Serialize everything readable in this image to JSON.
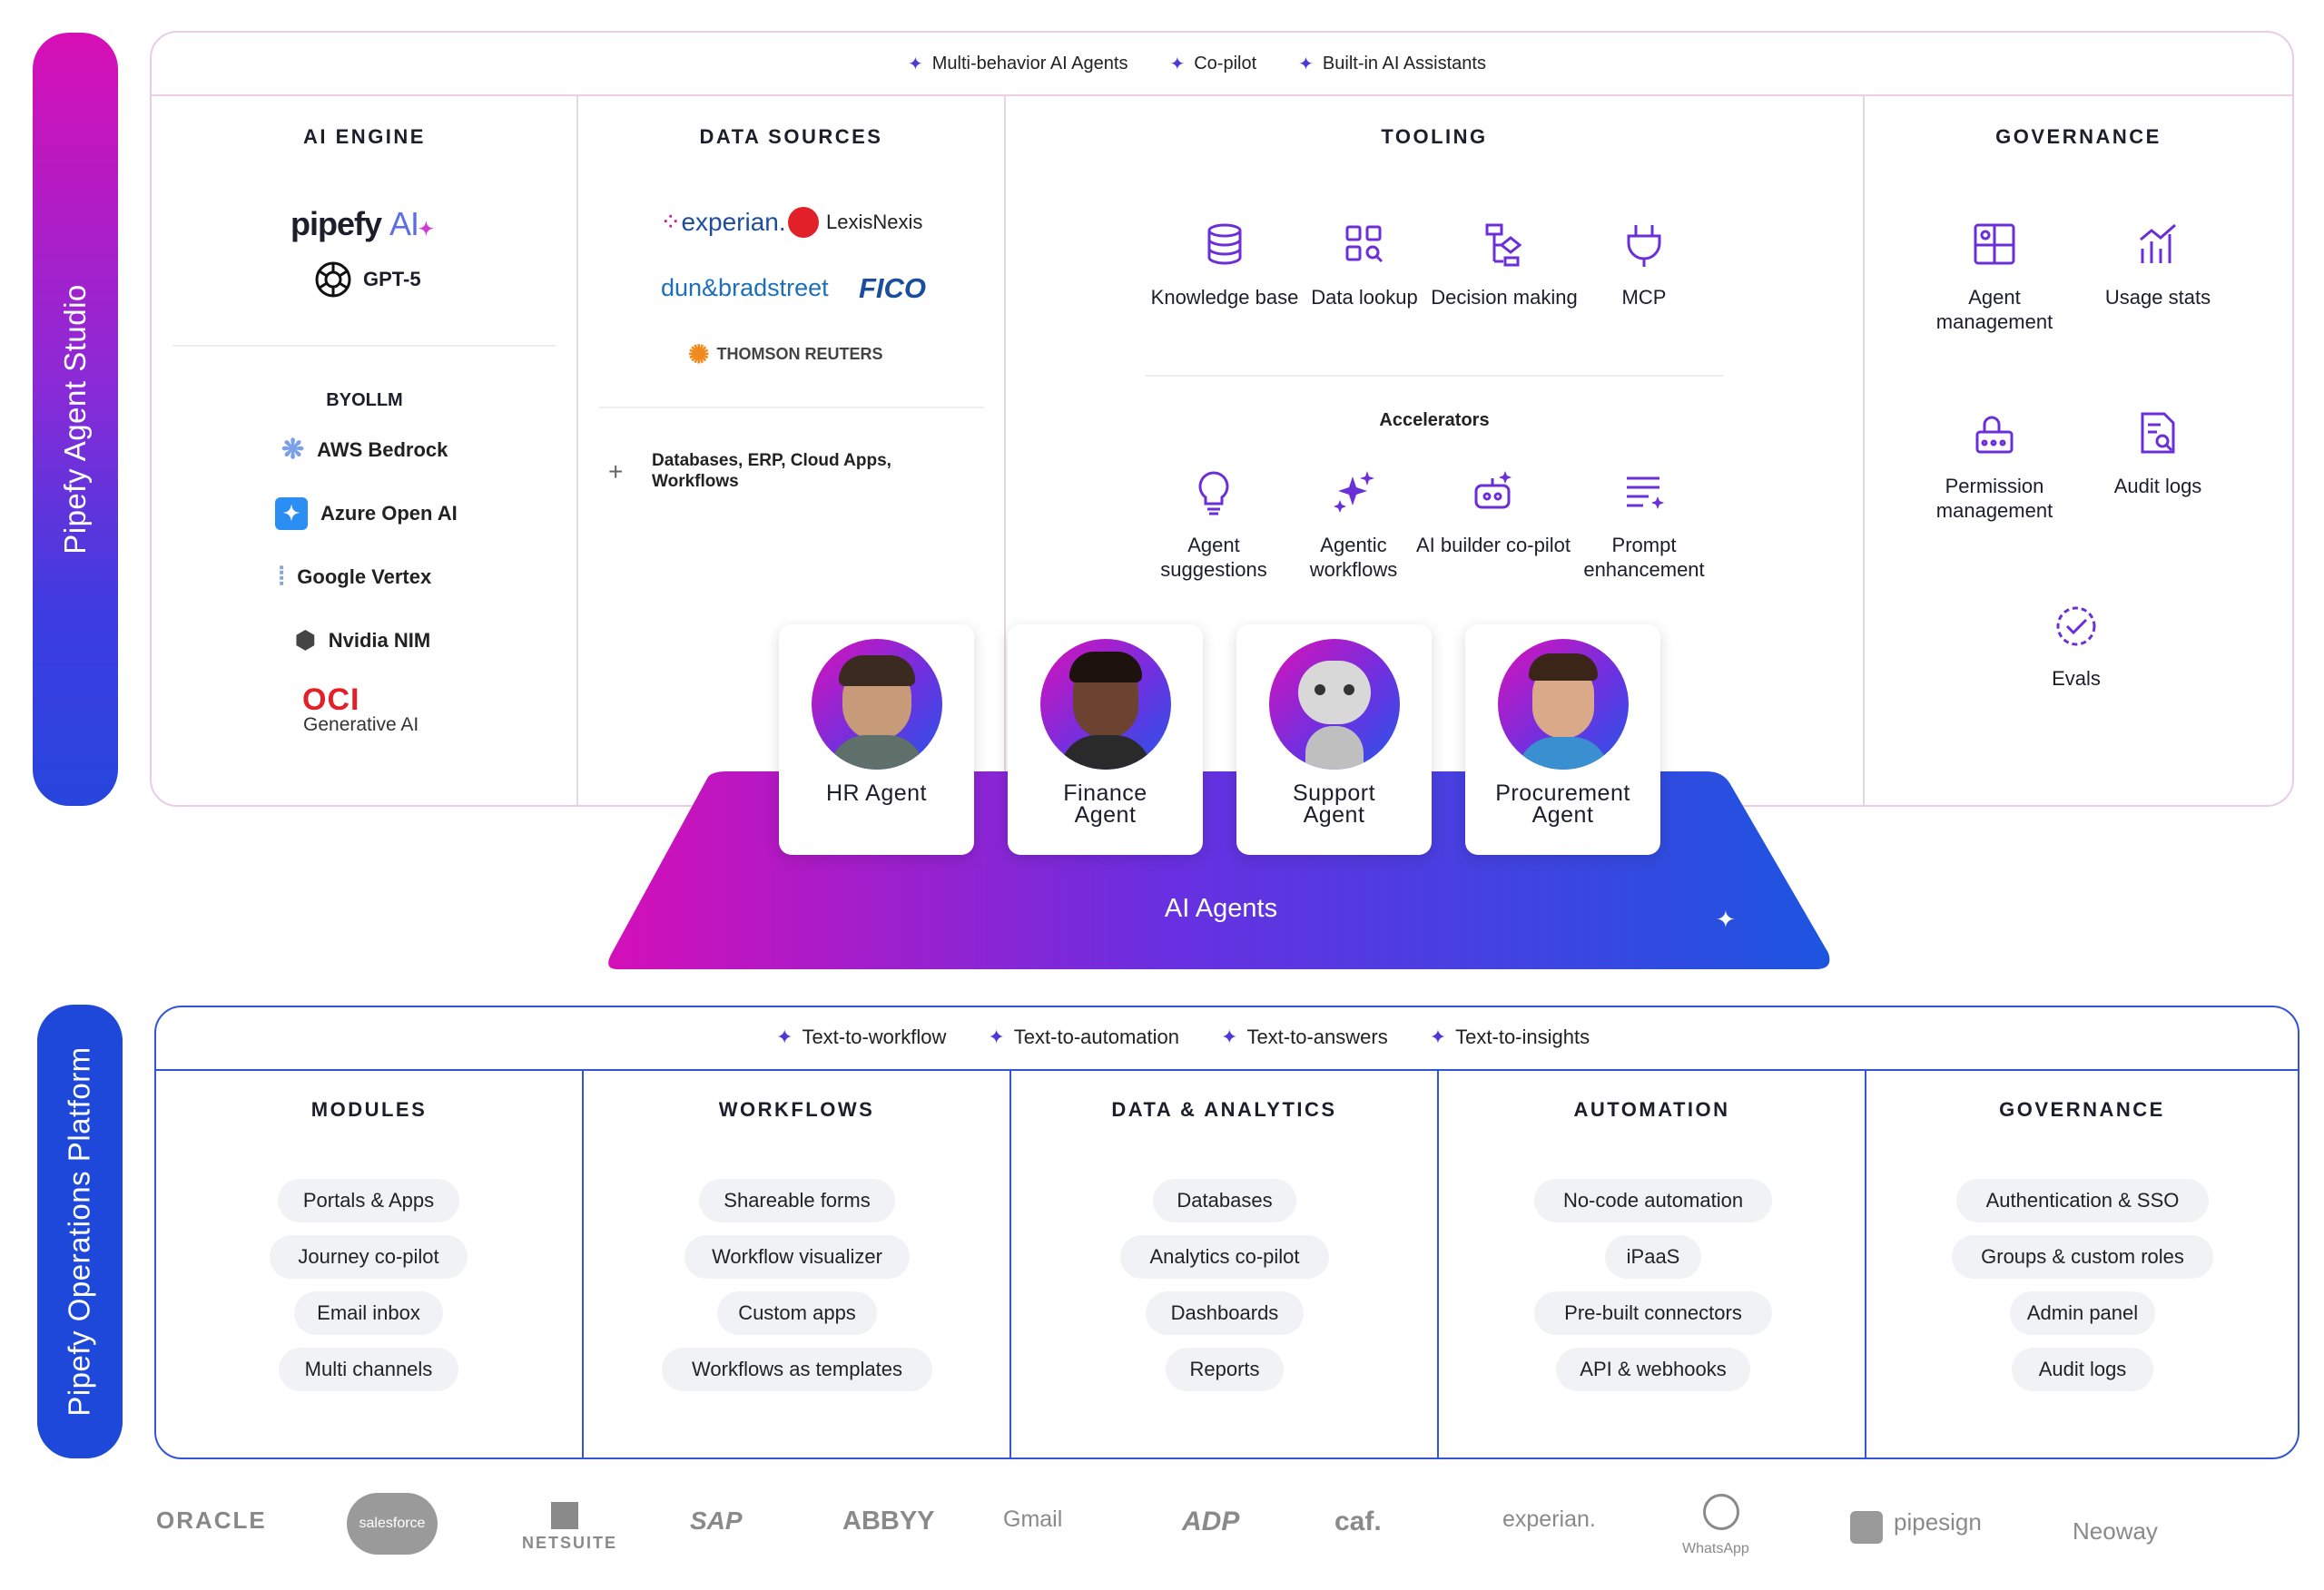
{
  "studio": {
    "side_label": "Pipefy Agent Studio",
    "tags": [
      "Multi-behavior AI Agents",
      "Co-pilot",
      "Built-in AI Assistants"
    ],
    "ai_engine": {
      "title": "AI ENGINE",
      "pipefy_logo": "pipefy",
      "pipefy_ai": "AI",
      "gpt": "GPT-5",
      "byollm_title": "BYOLLM",
      "providers": [
        "AWS Bedrock",
        "Azure Open AI",
        "Google Vertex",
        "Nvidia NIM"
      ],
      "oci": "OCI",
      "oci_sub": "Generative AI"
    },
    "data_sources": {
      "title": "DATA SOURCES",
      "logos": {
        "experian": "experian.",
        "lexis": "LexisNexis",
        "dnb": "dun&bradstreet",
        "fico": "FICO",
        "thomson": "THOMSON REUTERS"
      },
      "more": "Databases, ERP, Cloud Apps, Workflows"
    },
    "tooling": {
      "title": "TOOLING",
      "tools": [
        "Knowledge base",
        "Data lookup",
        "Decision making",
        "MCP"
      ],
      "accelerators_title": "Accelerators",
      "accelerators": [
        "Agent suggestions",
        "Agentic workflows",
        "AI builder co-pilot",
        "Prompt enhancement"
      ]
    },
    "governance": {
      "title": "GOVERNANCE",
      "items": [
        "Agent management",
        "Usage stats",
        "Permission management",
        "Audit logs",
        "Evals"
      ]
    }
  },
  "agents": {
    "platform_label": "AI Agents",
    "cards": [
      "HR Agent",
      "Finance Agent",
      "Support Agent",
      "Procurement Agent"
    ]
  },
  "platform": {
    "side_label": "Pipefy Operations Platform",
    "tags": [
      "Text-to-workflow",
      "Text-to-automation",
      "Text-to-answers",
      "Text-to-insights"
    ],
    "columns": [
      {
        "title": "MODULES",
        "items": [
          "Portals & Apps",
          "Journey co-pilot",
          "Email inbox",
          "Multi channels"
        ]
      },
      {
        "title": "WORKFLOWS",
        "items": [
          "Shareable forms",
          "Workflow visualizer",
          "Custom apps",
          "Workflows as templates"
        ]
      },
      {
        "title": "DATA & ANALYTICS",
        "items": [
          "Databases",
          "Analytics co-pilot",
          "Dashboards",
          "Reports"
        ]
      },
      {
        "title": "AUTOMATION",
        "items": [
          "No-code automation",
          "iPaaS",
          "Pre-built connectors",
          "API & webhooks"
        ]
      },
      {
        "title": "GOVERNANCE",
        "items": [
          "Authentication & SSO",
          "Groups & custom roles",
          "Admin panel",
          "Audit logs"
        ]
      }
    ]
  },
  "integrations": [
    "ORACLE",
    "salesforce",
    "NETSUITE",
    "SAP",
    "ABBYY",
    "Gmail",
    "ADP",
    "caf.",
    "experian.",
    "WhatsApp",
    "pipesign",
    "Neoway"
  ],
  "colors": {
    "accent_magenta": "#d70fb5",
    "accent_blue": "#1d48da",
    "icon_purple": "#6b2fd8"
  }
}
